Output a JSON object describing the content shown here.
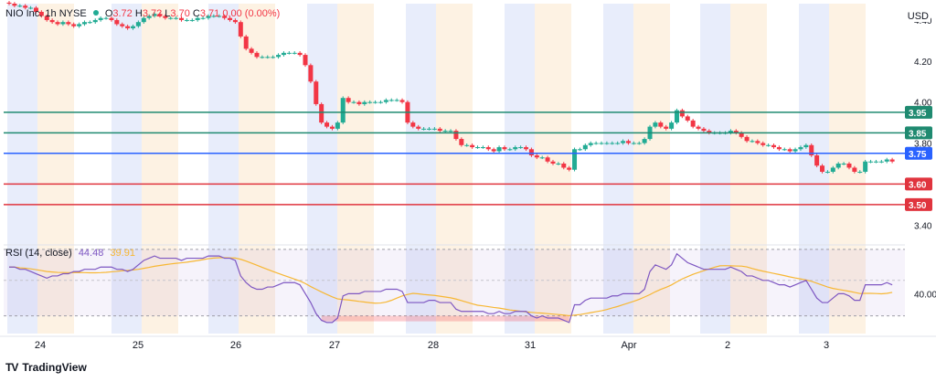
{
  "header": {
    "symbol": "NIO Inc.",
    "interval": "1h",
    "exchange": "NYSE",
    "open_label": "O",
    "open": "3.72",
    "high_label": "H",
    "high": "3.72",
    "low_label": "L",
    "low": "3.70",
    "close_label": "C",
    "close": "3.71",
    "change": "0.00 (0.00%)",
    "currency": "USD"
  },
  "brand": {
    "mark": "TV",
    "name": "TradingView"
  },
  "rsi": {
    "title": "RSI (14, close)",
    "value": "44.48",
    "ma_value": "39.91",
    "axis_label": "40.00"
  },
  "colors": {
    "up": "#22ab94",
    "down": "#f23645",
    "resistance": "#1f8a70",
    "support": "#e0343e",
    "current": "#2962ff",
    "rsi_line": "#7e57c2",
    "rsi_ma": "#f7b733",
    "band_blue": "#e8edfb",
    "band_orange": "#fdf2e3"
  },
  "chart_data": {
    "type": "candlestick",
    "price_axis": {
      "ticks": [
        "4.40",
        "4.20",
        "4.00",
        "3.80",
        "3.40"
      ],
      "ylim": [
        3.33,
        4.48
      ]
    },
    "time_axis": {
      "labels": [
        "24",
        "25",
        "26",
        "27",
        "28",
        "31",
        "Apr",
        "2",
        "3"
      ]
    },
    "levels": [
      {
        "label": "3.95",
        "value": 3.95,
        "kind": "resistance"
      },
      {
        "label": "3.85",
        "value": 3.85,
        "kind": "resistance"
      },
      {
        "label": "3.75",
        "value": 3.75,
        "kind": "current"
      },
      {
        "label": "3.60",
        "value": 3.6,
        "kind": "support"
      },
      {
        "label": "3.50",
        "value": 3.5,
        "kind": "support"
      }
    ],
    "sessions": [
      [
        "pre",
        "post",
        "pre",
        "post",
        "pre",
        "post",
        "pre",
        "post",
        "pre",
        "post",
        "pre",
        "post",
        "pre",
        "post",
        "pre",
        "post",
        "pre",
        "post"
      ]
    ],
    "closes": [
      4.48,
      4.47,
      4.47,
      4.46,
      4.46,
      4.44,
      4.42,
      4.4,
      4.39,
      4.38,
      4.39,
      4.38,
      4.37,
      4.38,
      4.39,
      4.39,
      4.4,
      4.41,
      4.41,
      4.4,
      4.38,
      4.37,
      4.36,
      4.37,
      4.39,
      4.41,
      4.42,
      4.43,
      4.42,
      4.41,
      4.41,
      4.41,
      4.4,
      4.4,
      4.4,
      4.41,
      4.41,
      4.42,
      4.42,
      4.42,
      4.41,
      4.4,
      4.39,
      4.32,
      4.26,
      4.24,
      4.22,
      4.22,
      4.22,
      4.22,
      4.23,
      4.24,
      4.24,
      4.24,
      4.23,
      4.18,
      4.1,
      3.99,
      3.9,
      3.88,
      3.87,
      3.9,
      4.02,
      4.0,
      4.0,
      3.99,
      4.0,
      4.0,
      4.0,
      4.0,
      4.01,
      4.01,
      4.01,
      4.0,
      3.9,
      3.88,
      3.87,
      3.87,
      3.87,
      3.87,
      3.86,
      3.86,
      3.86,
      3.82,
      3.79,
      3.79,
      3.78,
      3.78,
      3.78,
      3.77,
      3.76,
      3.78,
      3.77,
      3.77,
      3.78,
      3.78,
      3.77,
      3.74,
      3.73,
      3.73,
      3.71,
      3.7,
      3.7,
      3.68,
      3.67,
      3.77,
      3.77,
      3.79,
      3.8,
      3.8,
      3.8,
      3.8,
      3.8,
      3.8,
      3.81,
      3.8,
      3.8,
      3.8,
      3.82,
      3.88,
      3.9,
      3.88,
      3.87,
      3.9,
      3.96,
      3.93,
      3.91,
      3.88,
      3.87,
      3.86,
      3.85,
      3.85,
      3.85,
      3.85,
      3.86,
      3.85,
      3.83,
      3.81,
      3.81,
      3.8,
      3.79,
      3.79,
      3.78,
      3.77,
      3.77,
      3.76,
      3.77,
      3.78,
      3.79,
      3.74,
      3.69,
      3.66,
      3.66,
      3.68,
      3.7,
      3.7,
      3.68,
      3.66,
      3.66,
      3.71,
      3.71,
      3.71,
      3.71,
      3.72,
      3.71
    ],
    "rsi": [
      52,
      52,
      51,
      51,
      50,
      49,
      48,
      47,
      48,
      48,
      49,
      49,
      50,
      50,
      51,
      51,
      51,
      52,
      52,
      52,
      51,
      51,
      50,
      51,
      53,
      55,
      56,
      57,
      56,
      56,
      56,
      56,
      55,
      56,
      56,
      56,
      56,
      57,
      57,
      57,
      56,
      56,
      55,
      48,
      45,
      43,
      42,
      42,
      43,
      43,
      44,
      45,
      45,
      45,
      44,
      40,
      36,
      31,
      28,
      27,
      27,
      29,
      39,
      40,
      40,
      40,
      41,
      41,
      41,
      41,
      42,
      42,
      42,
      41,
      36,
      36,
      36,
      36,
      37,
      37,
      36,
      36,
      36,
      33,
      32,
      32,
      32,
      32,
      32,
      31,
      31,
      32,
      31,
      31,
      32,
      32,
      32,
      30,
      29,
      30,
      29,
      29,
      29,
      28,
      27,
      35,
      35,
      37,
      38,
      38,
      38,
      38,
      39,
      39,
      40,
      40,
      40,
      40,
      42,
      50,
      53,
      52,
      51,
      53,
      58,
      56,
      54,
      53,
      52,
      51,
      51,
      51,
      51,
      51,
      52,
      51,
      50,
      48,
      48,
      47,
      46,
      46,
      45,
      44,
      44,
      43,
      44,
      45,
      46,
      42,
      38,
      36,
      36,
      38,
      40,
      40,
      39,
      37,
      37,
      44,
      44,
      44,
      44,
      45,
      44
    ]
  }
}
